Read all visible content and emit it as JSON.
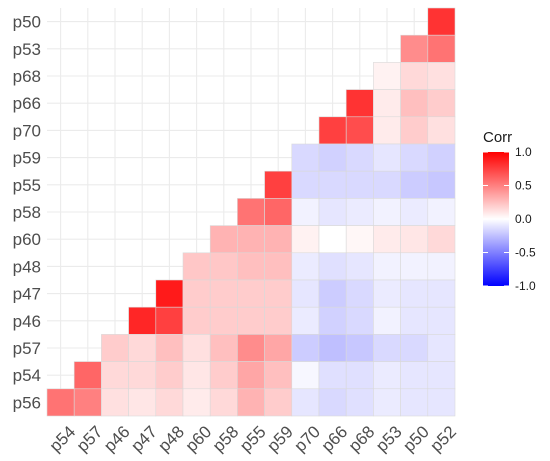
{
  "chart_data": {
    "type": "heatmap",
    "x_labels": [
      "p54",
      "p57",
      "p46",
      "p47",
      "p48",
      "p60",
      "p58",
      "p55",
      "p59",
      "p70",
      "p66",
      "p68",
      "p53",
      "p50",
      "p52"
    ],
    "y_labels": [
      "p50",
      "p53",
      "p68",
      "p66",
      "p70",
      "p59",
      "p55",
      "p58",
      "p60",
      "p48",
      "p47",
      "p46",
      "p57",
      "p54",
      "p56"
    ],
    "legend": {
      "title": "Corr",
      "ticks": [
        1.0,
        0.5,
        0.0,
        -0.5,
        -1.0
      ],
      "tick_labels": [
        "1.0",
        "0.5",
        "0.0",
        "-0.5",
        "-1.0"
      ],
      "colors": {
        "high": "#FF0000",
        "mid": "#FFFFFF",
        "low": "#0000FF"
      },
      "position": "right"
    },
    "grid": true,
    "values": [
      [
        null,
        null,
        null,
        null,
        null,
        null,
        null,
        null,
        null,
        null,
        null,
        null,
        null,
        null,
        0.8
      ],
      [
        null,
        null,
        null,
        null,
        null,
        null,
        null,
        null,
        null,
        null,
        null,
        null,
        null,
        0.45,
        0.55
      ],
      [
        null,
        null,
        null,
        null,
        null,
        null,
        null,
        null,
        null,
        null,
        null,
        null,
        0.05,
        0.15,
        0.12
      ],
      [
        null,
        null,
        null,
        null,
        null,
        null,
        null,
        null,
        null,
        null,
        null,
        0.8,
        0.08,
        0.25,
        0.2
      ],
      [
        null,
        null,
        null,
        null,
        null,
        null,
        null,
        null,
        null,
        null,
        0.75,
        0.7,
        0.08,
        0.2,
        0.12
      ],
      [
        null,
        null,
        null,
        null,
        null,
        null,
        null,
        null,
        null,
        -0.15,
        -0.18,
        -0.15,
        -0.1,
        -0.15,
        -0.18
      ],
      [
        null,
        null,
        null,
        null,
        null,
        null,
        null,
        null,
        0.75,
        -0.15,
        -0.15,
        -0.15,
        -0.15,
        -0.2,
        -0.22
      ],
      [
        null,
        null,
        null,
        null,
        null,
        null,
        null,
        0.55,
        0.6,
        -0.05,
        -0.1,
        -0.08,
        -0.05,
        -0.08,
        -0.05
      ],
      [
        null,
        null,
        null,
        null,
        null,
        null,
        0.3,
        0.3,
        0.3,
        0.05,
        0.0,
        0.03,
        0.08,
        0.1,
        0.15
      ],
      [
        null,
        null,
        null,
        null,
        null,
        0.22,
        0.22,
        0.25,
        0.25,
        -0.08,
        -0.12,
        -0.1,
        -0.05,
        -0.05,
        -0.05
      ],
      [
        null,
        null,
        null,
        null,
        0.9,
        0.2,
        0.2,
        0.2,
        0.2,
        -0.1,
        -0.2,
        -0.15,
        -0.08,
        -0.1,
        -0.1
      ],
      [
        null,
        null,
        null,
        0.85,
        0.75,
        0.2,
        0.2,
        0.2,
        0.2,
        -0.08,
        -0.18,
        -0.15,
        -0.05,
        -0.1,
        -0.1
      ],
      [
        null,
        null,
        0.2,
        0.15,
        0.25,
        0.12,
        0.25,
        0.45,
        0.35,
        -0.2,
        -0.25,
        -0.22,
        -0.15,
        -0.15,
        -0.1
      ],
      [
        null,
        0.6,
        0.15,
        0.15,
        0.2,
        0.1,
        0.2,
        0.35,
        0.25,
        -0.03,
        -0.12,
        -0.12,
        -0.08,
        -0.1,
        -0.1
      ],
      [
        0.55,
        0.5,
        0.12,
        0.1,
        0.15,
        0.08,
        0.15,
        0.3,
        0.2,
        -0.1,
        -0.15,
        -0.12,
        -0.08,
        -0.1,
        -0.1
      ]
    ]
  }
}
